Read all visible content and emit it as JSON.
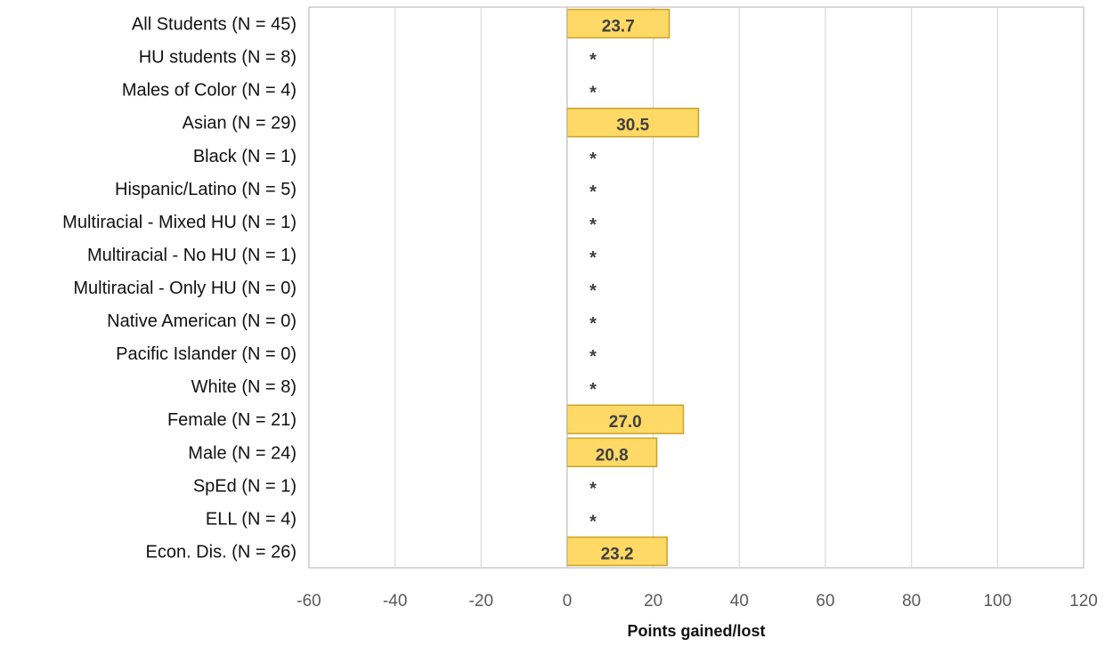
{
  "chart_data": {
    "type": "bar",
    "orientation": "horizontal",
    "categories": [
      "All Students (N = 45)",
      "HU students (N = 8)",
      "Males of Color (N = 4)",
      "Asian (N = 29)",
      "Black (N = 1)",
      "Hispanic/Latino (N = 5)",
      "Multiracial - Mixed HU (N = 1)",
      "Multiracial - No HU (N = 1)",
      "Multiracial - Only HU (N = 0)",
      "Native American (N = 0)",
      "Pacific Islander (N = 0)",
      "White (N = 8)",
      "Female (N = 21)",
      "Male (N = 24)",
      "SpEd (N = 1)",
      "ELL (N = 4)",
      "Econ. Dis. (N = 26)"
    ],
    "values": [
      23.7,
      null,
      null,
      30.5,
      null,
      null,
      null,
      null,
      null,
      null,
      null,
      null,
      27.0,
      20.8,
      null,
      null,
      23.2
    ],
    "data_labels": [
      "23.7",
      "*",
      "*",
      "30.5",
      "*",
      "*",
      "*",
      "*",
      "*",
      "*",
      "*",
      "*",
      "27.0",
      "20.8",
      "*",
      "*",
      "23.2"
    ],
    "xlabel": "Points gained/lost",
    "xlim": [
      -60,
      120
    ],
    "x_ticks": [
      "-60",
      "-40",
      "-20",
      "0",
      "20",
      "40",
      "60",
      "80",
      "100",
      "120"
    ],
    "grid": "vertical",
    "legend": "none",
    "colors": {
      "bar_fill": "#FFD966",
      "bar_stroke": "#C9A227",
      "grid": "#D9D9D9",
      "axis": "#BFBFBF"
    }
  }
}
